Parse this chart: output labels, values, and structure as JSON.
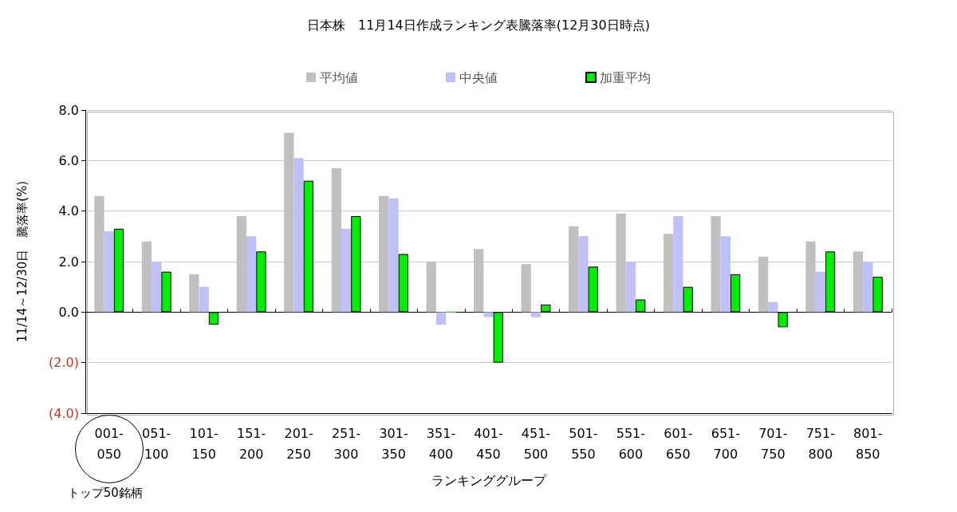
{
  "chart_data": {
    "type": "bar",
    "title": "日本株　11月14日作成ランキング表騰落率(12月30日時点)",
    "xlabel": "ランキンググループ",
    "ylabel": "11/14～12/30日　騰落率(%)",
    "categories": [
      "001-050",
      "051-100",
      "101-150",
      "151-200",
      "201-250",
      "251-300",
      "301-350",
      "351-400",
      "401-450",
      "451-500",
      "501-550",
      "551-600",
      "601-650",
      "651-700",
      "701-750",
      "751-800",
      "801-850"
    ],
    "series": [
      {
        "name": "平均値",
        "color": "#c0c0c0",
        "values": [
          4.6,
          2.8,
          1.5,
          3.8,
          7.1,
          5.7,
          4.6,
          2.0,
          2.5,
          1.9,
          3.4,
          3.9,
          3.1,
          3.8,
          2.2,
          2.8,
          2.4
        ]
      },
      {
        "name": "中央値",
        "color": "#c0c0f8",
        "values": [
          3.2,
          2.0,
          1.0,
          3.0,
          6.1,
          3.3,
          4.5,
          -0.5,
          -0.2,
          -0.2,
          3.0,
          2.0,
          3.8,
          3.0,
          0.4,
          1.6,
          2.0
        ]
      },
      {
        "name": "加重平均",
        "color": "#00ee00",
        "values": [
          3.3,
          1.6,
          -0.5,
          2.4,
          5.2,
          3.8,
          2.3,
          0.0,
          -2.0,
          0.3,
          1.8,
          0.5,
          1.0,
          1.5,
          -0.6,
          2.4,
          1.4
        ]
      }
    ],
    "ylim": [
      -4,
      8
    ],
    "yticks": [
      {
        "value": -4,
        "label": "(4.0)"
      },
      {
        "value": -2,
        "label": "(2.0)"
      },
      {
        "value": 0,
        "label": "0.0"
      },
      {
        "value": 2,
        "label": "2.0"
      },
      {
        "value": 4,
        "label": "4.0"
      },
      {
        "value": 6,
        "label": "6.0"
      },
      {
        "value": 8,
        "label": "8.0"
      }
    ],
    "annotations": [
      "トップ50銘柄"
    ],
    "grid": "y",
    "legend": "top"
  }
}
